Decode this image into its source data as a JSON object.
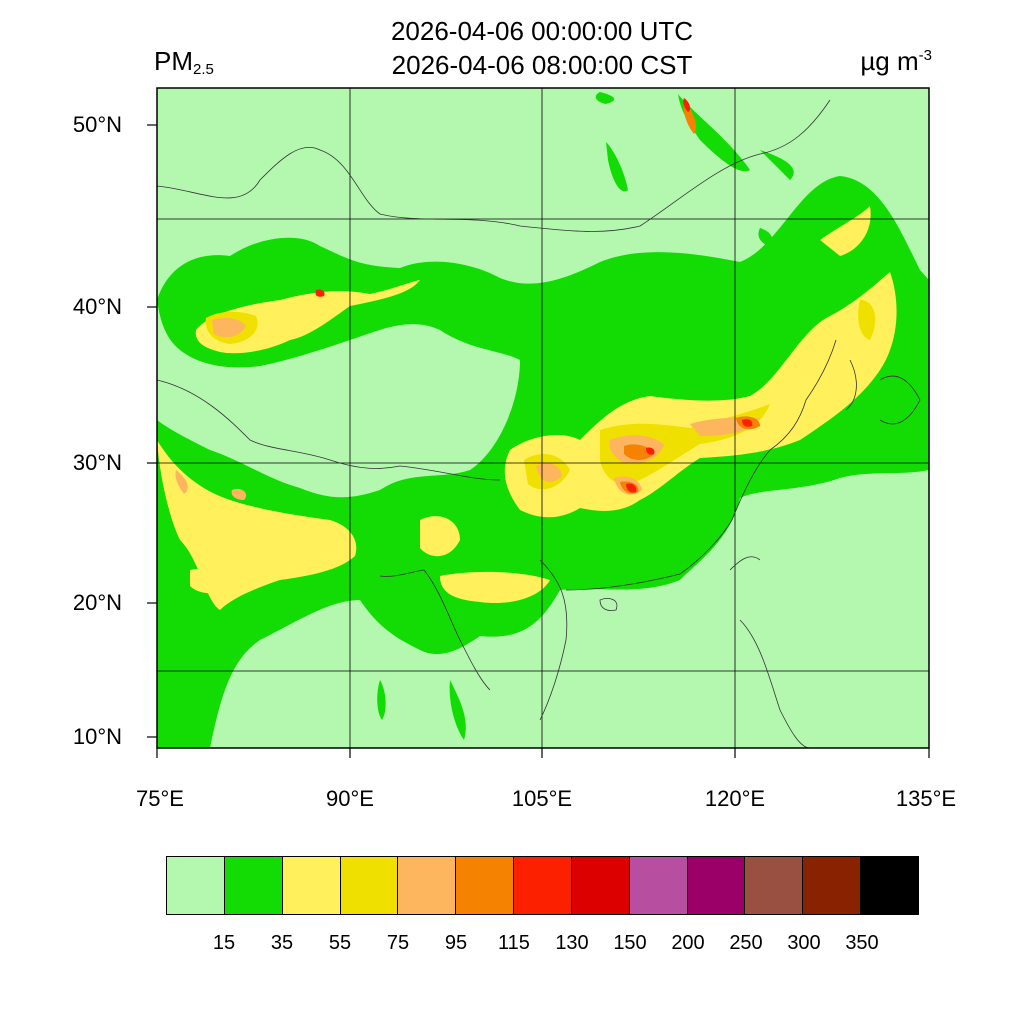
{
  "header": {
    "time_utc": "2026-04-06 00:00:00 UTC",
    "time_local": "2026-04-06 08:00:00 CST",
    "variable_name": "PM",
    "variable_subscript": "2.5",
    "unit_base": "µg m",
    "unit_exponent": "-3"
  },
  "map": {
    "lon_range": [
      75,
      135
    ],
    "lat_range": [
      9,
      52
    ],
    "lat_ticks": [
      {
        "value": 50,
        "label": "50°N"
      },
      {
        "value": 40,
        "label": "40°N"
      },
      {
        "value": 30,
        "label": "30°N"
      },
      {
        "value": 20,
        "label": "20°N"
      },
      {
        "value": 10,
        "label": "10°N"
      }
    ],
    "lon_ticks": [
      {
        "value": 75,
        "label": "75°E"
      },
      {
        "value": 90,
        "label": "90°E"
      },
      {
        "value": 105,
        "label": "105°E"
      },
      {
        "value": 120,
        "label": "120°E"
      },
      {
        "value": 135,
        "label": "135°E"
      }
    ],
    "background_color": "#b4f8b0"
  },
  "colorbar": {
    "colors": [
      "#b4f8b0",
      "#12dc04",
      "#fff05c",
      "#f0e000",
      "#fdb65e",
      "#f58200",
      "#fd2000",
      "#dc0000",
      "#b84ea0",
      "#9a0068",
      "#9a5040",
      "#882200",
      "#000000"
    ],
    "labels": [
      "15",
      "35",
      "55",
      "75",
      "95",
      "115",
      "130",
      "150",
      "200",
      "250",
      "300",
      "350"
    ]
  }
}
